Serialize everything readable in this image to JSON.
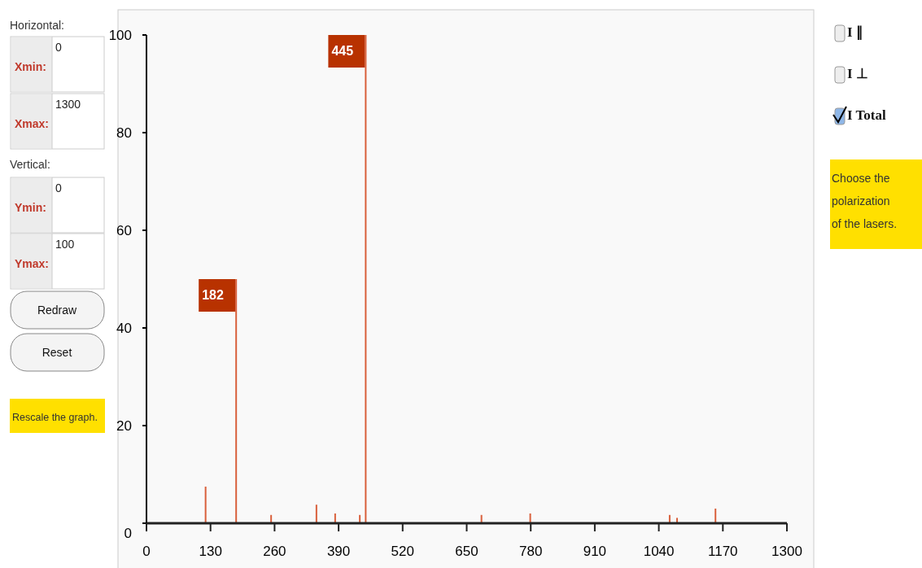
{
  "chart_data": {
    "type": "bar",
    "x": [
      120,
      182,
      253,
      345,
      383,
      433,
      445,
      680,
      779,
      1062,
      1077,
      1155
    ],
    "values": [
      7.5,
      50,
      1.7,
      3.8,
      2,
      1.7,
      100,
      1.7,
      2,
      1.7,
      1.1,
      3
    ],
    "color": "#d9603c",
    "xlim": [
      0,
      1300
    ],
    "xticks": [
      0,
      130,
      260,
      390,
      520,
      650,
      780,
      910,
      1040,
      1170,
      1300
    ],
    "ylim": [
      0,
      100
    ],
    "yticks": [
      0,
      20,
      40,
      60,
      80,
      100
    ],
    "grid": false,
    "annotations": [
      {
        "text": "182",
        "x": 182,
        "y": 50
      },
      {
        "text": "445",
        "x": 445,
        "y": 100
      },
      "Horizontal:",
      "Xmin:",
      "0",
      "Xmax:",
      "1300",
      "Vertical:",
      "Ymin:",
      "0",
      "Ymax:",
      "100",
      "Redraw",
      "Reset",
      "Rescale the graph.",
      "I ∥",
      "I ⊥",
      "I Total",
      "Choose the polarization of the lasers."
    ]
  }
}
